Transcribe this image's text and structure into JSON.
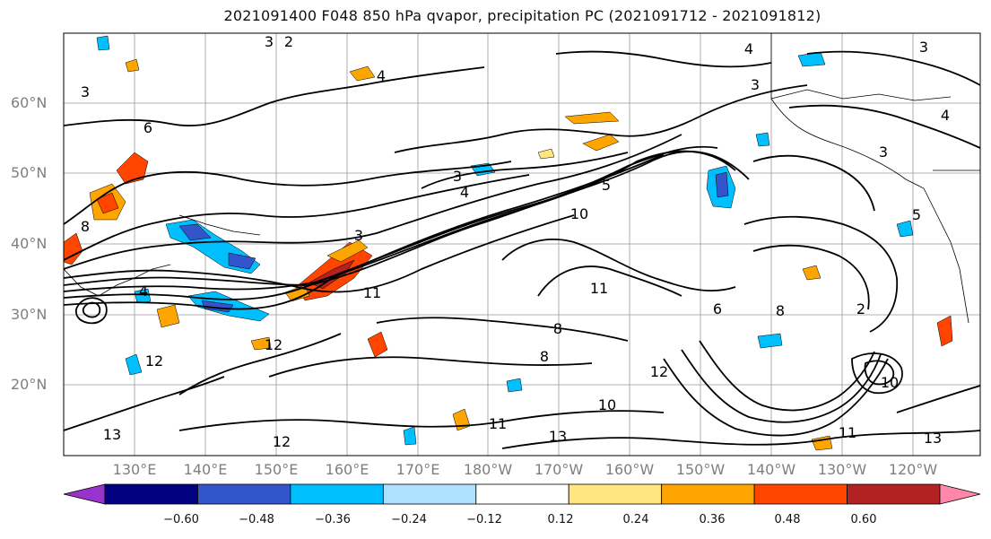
{
  "title": "2021091400 F048 850 hPa qvapor, precipitation PC (2021091712 - 2021091812)",
  "lat_labels": [
    "60°N",
    "50°N",
    "40°N",
    "30°N",
    "20°N"
  ],
  "lon_labels": [
    "130°E",
    "140°E",
    "150°E",
    "160°E",
    "170°E",
    "180°W",
    "170°W",
    "160°W",
    "150°W",
    "140°W",
    "130°W",
    "120°W"
  ],
  "colorbar": {
    "colors": [
      "#9933cc",
      "#000080",
      "#3355cc",
      "#00bfff",
      "#b0e0ff",
      "#ffffff",
      "#ffe680",
      "#ffa500",
      "#ff4500",
      "#b22222",
      "#ff88aa"
    ],
    "ticks": [
      "−0.60",
      "−0.48",
      "−0.36",
      "−0.24",
      "−0.12",
      "0.12",
      "0.24",
      "0.36",
      "0.48",
      "0.60"
    ]
  },
  "contour_labels": [
    "3",
    "2",
    "4",
    "3",
    "6",
    "3",
    "4",
    "3",
    "4",
    "5",
    "3",
    "10",
    "8",
    "6",
    "11",
    "8",
    "3",
    "8",
    "4",
    "8",
    "2",
    "11",
    "12",
    "12",
    "13",
    "13",
    "12",
    "11",
    "13",
    "10",
    "12",
    "5",
    "13",
    "10",
    "4",
    "3"
  ]
}
